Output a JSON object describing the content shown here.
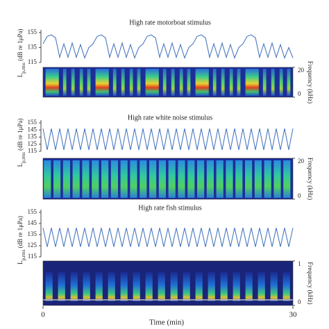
{
  "x_axis": {
    "label": "Time (min)",
    "xlim": [
      0,
      30
    ],
    "xticks": [
      0,
      30
    ]
  },
  "chart_data": [
    {
      "type": "line",
      "title": "High rate motorboat stimulus",
      "ylabel": "L",
      "ylabel_sub": "p,rms",
      "ylabel_unit": " (dB re 1μPa)",
      "color": "#4a78c0",
      "ylim": [
        115,
        155
      ],
      "yticks": [
        115,
        135,
        155
      ],
      "x": [
        0,
        0.5,
        1,
        1.5,
        2,
        2.5,
        3,
        3.5,
        4,
        4.5,
        5,
        5.5,
        6,
        6.5,
        7,
        7.5,
        8,
        8.5,
        9,
        9.5,
        10,
        10.5,
        11,
        11.5,
        12,
        12.5,
        13,
        13.5,
        14,
        14.5,
        15,
        15.5,
        16,
        16.5,
        17,
        17.5,
        18,
        18.5,
        19,
        19.5,
        20,
        20.5,
        21,
        21.5,
        22,
        22.5,
        23,
        23.5,
        24,
        24.5,
        25,
        25.5,
        26,
        26.5,
        27,
        27.5,
        28,
        28.5,
        29,
        29.5,
        30
      ],
      "values": [
        140,
        150,
        152,
        148,
        122,
        140,
        122,
        141,
        122,
        139,
        121,
        135,
        140,
        150,
        152,
        148,
        122,
        140,
        122,
        141,
        122,
        139,
        121,
        135,
        140,
        150,
        152,
        148,
        122,
        140,
        122,
        141,
        122,
        139,
        121,
        135,
        140,
        150,
        152,
        148,
        122,
        140,
        122,
        141,
        122,
        139,
        121,
        135,
        140,
        150,
        152,
        148,
        122,
        140,
        122,
        141,
        122,
        139,
        121,
        135,
        121
      ],
      "spectrogram": {
        "ylabel": "Frequency (kHz)",
        "ylim": [
          0,
          20
        ],
        "yticks": [
          0,
          20
        ]
      }
    },
    {
      "type": "line",
      "title": "High rate white noise stimulus",
      "ylabel": "L",
      "ylabel_sub": "p,rms",
      "ylabel_unit": " (dB re 1μPa)",
      "color": "#4a78c0",
      "ylim": [
        115,
        155
      ],
      "yticks": [
        115,
        125,
        135,
        145,
        155
      ],
      "x": [
        0,
        0.5,
        1,
        1.5,
        2,
        2.5,
        3,
        3.5,
        4,
        4.5,
        5,
        5.5,
        6,
        6.5,
        7,
        7.5,
        8,
        8.5,
        9,
        9.5,
        10,
        10.5,
        11,
        11.5,
        12,
        12.5,
        13,
        13.5,
        14,
        14.5,
        15,
        15.5,
        16,
        16.5,
        17,
        17.5,
        18,
        18.5,
        19,
        19.5,
        20,
        20.5,
        21,
        21.5,
        22,
        22.5,
        23,
        23.5,
        24,
        24.5,
        25,
        25.5,
        26,
        26.5,
        27,
        27.5,
        28,
        28.5,
        29,
        29.5,
        30
      ],
      "values": [
        147,
        117,
        147,
        117,
        147,
        117,
        147,
        117,
        147,
        117,
        147,
        117,
        147,
        117,
        147,
        117,
        147,
        117,
        147,
        117,
        147,
        117,
        147,
        117,
        147,
        117,
        147,
        117,
        147,
        117,
        147,
        117,
        147,
        117,
        147,
        117,
        147,
        117,
        147,
        117,
        147,
        117,
        147,
        117,
        147,
        117,
        147,
        117,
        147,
        117,
        147,
        117,
        147,
        117,
        147,
        117,
        147,
        117,
        147,
        117,
        147
      ],
      "spectrogram": {
        "ylabel": "Frequency (kHz)",
        "ylim": [
          0,
          20
        ],
        "yticks": [
          0,
          20
        ]
      }
    },
    {
      "type": "line",
      "title": "High rate fish stimulus",
      "ylabel": "L",
      "ylabel_sub": "p,rms",
      "ylabel_unit": " (dB re 1μPa)",
      "color": "#4a78c0",
      "ylim": [
        115,
        155
      ],
      "yticks": [
        115,
        125,
        135,
        145,
        155
      ],
      "x": [
        0,
        0.5,
        1,
        1.5,
        2,
        2.5,
        3,
        3.5,
        4,
        4.5,
        5,
        5.5,
        6,
        6.5,
        7,
        7.5,
        8,
        8.5,
        9,
        9.5,
        10,
        10.5,
        11,
        11.5,
        12,
        12.5,
        13,
        13.5,
        14,
        14.5,
        15,
        15.5,
        16,
        16.5,
        17,
        17.5,
        18,
        18.5,
        19,
        19.5,
        20,
        20.5,
        21,
        21.5,
        22,
        22.5,
        23,
        23.5,
        24,
        24.5,
        25,
        25.5,
        26,
        26.5,
        27,
        27.5,
        28,
        28.5,
        29,
        29.5,
        30
      ],
      "values": [
        141,
        124,
        141,
        124,
        141,
        124,
        141,
        124,
        141,
        124,
        141,
        124,
        141,
        124,
        141,
        124,
        141,
        124,
        141,
        124,
        141,
        124,
        141,
        124,
        141,
        124,
        141,
        124,
        141,
        124,
        141,
        124,
        141,
        124,
        141,
        124,
        141,
        124,
        141,
        124,
        141,
        124,
        141,
        124,
        141,
        124,
        141,
        124,
        141,
        124,
        141,
        124,
        141,
        124,
        141,
        124,
        141,
        124,
        141,
        124,
        141
      ],
      "spectrogram": {
        "ylabel": "Frequency (kHz)",
        "ylim": [
          0,
          1
        ],
        "yticks": [
          0,
          1
        ]
      }
    }
  ]
}
